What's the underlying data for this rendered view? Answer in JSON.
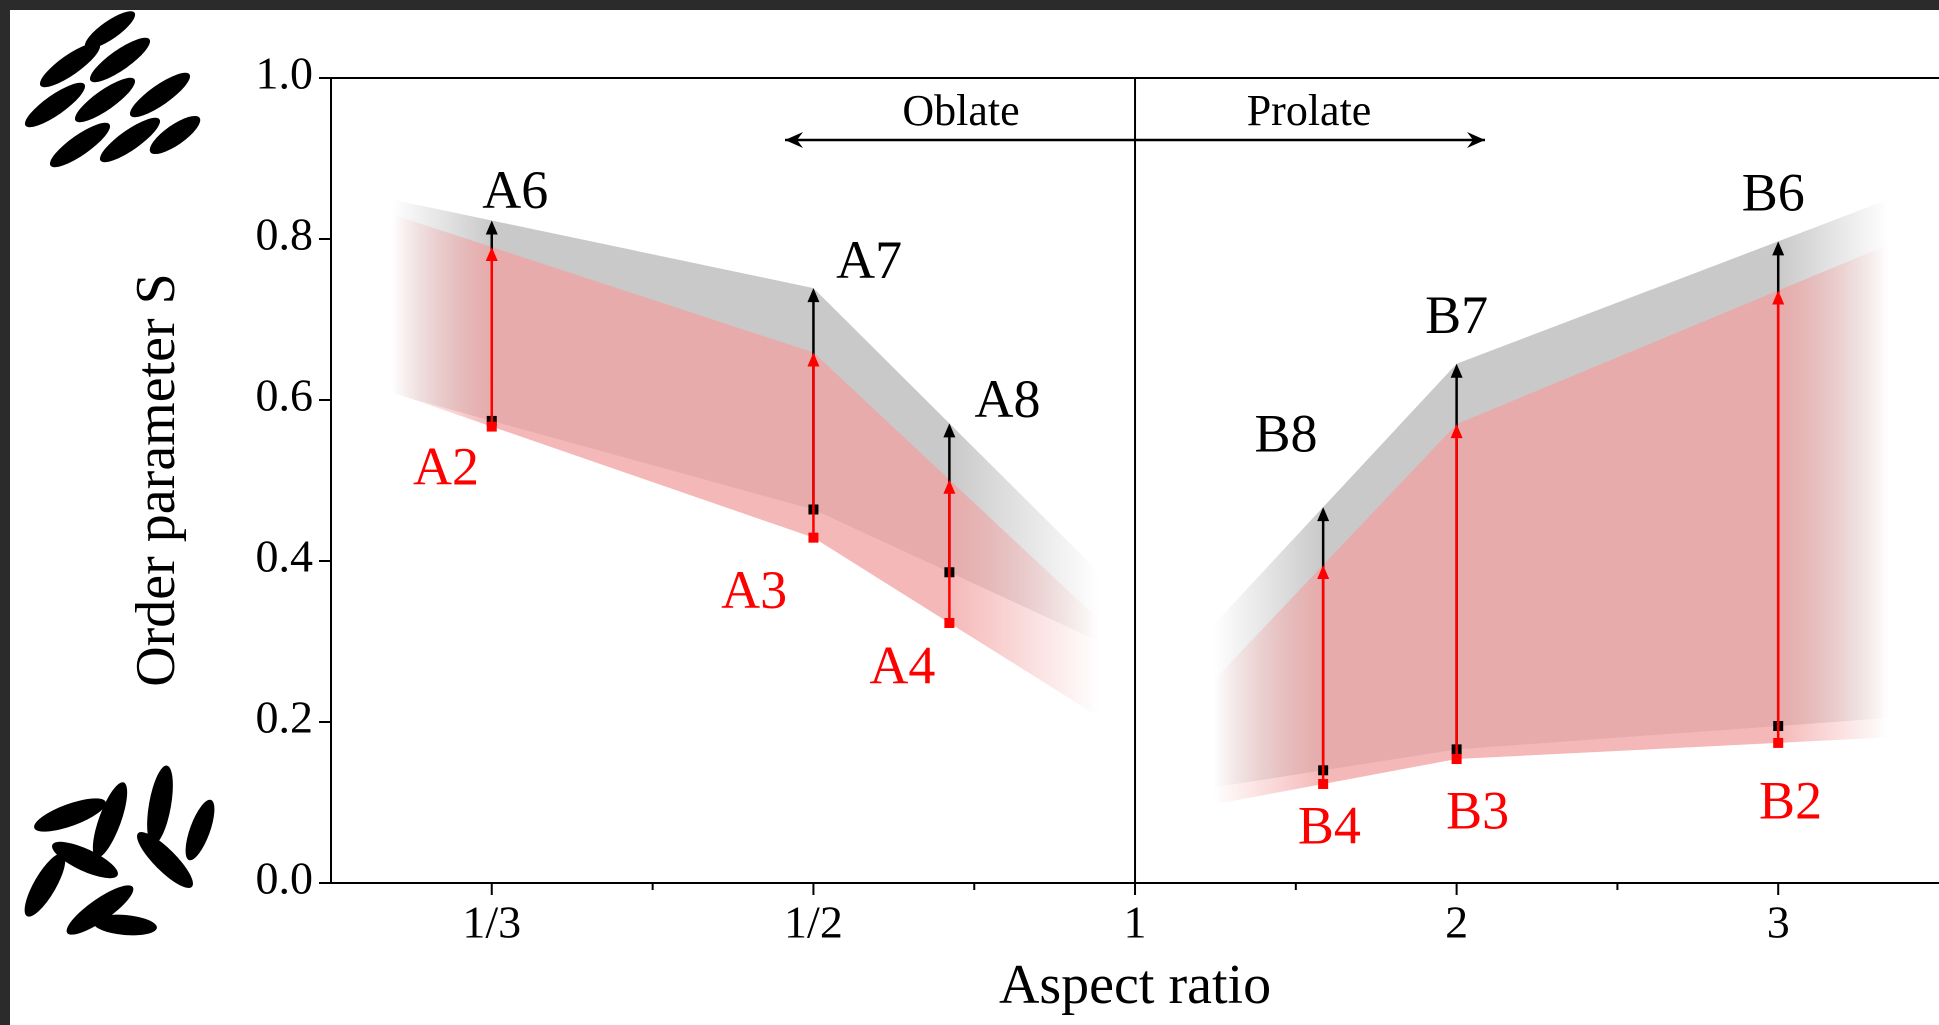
{
  "chart_data": {
    "type": "range",
    "xlabel": "Aspect ratio",
    "ylabel": "Order parameter S",
    "xscale": "reciprocal-symmetric",
    "xlim": [
      0.2857,
      3.5
    ],
    "xticks": [
      {
        "value": 0.3333,
        "label": "1/3"
      },
      {
        "value": 0.5,
        "label": "1/2"
      },
      1,
      2,
      3
    ],
    "xminorticks": [
      0.4,
      0.6667,
      1.5,
      2.5
    ],
    "ylim": [
      0,
      1
    ],
    "yticks": [
      {
        "value": 0,
        "label": "0.0"
      },
      0.2,
      0.4,
      0.6,
      0.8,
      {
        "value": 1,
        "label": "1.0"
      }
    ],
    "vline": 1,
    "annotations": [
      {
        "text": "Oblate",
        "direction": "left"
      },
      {
        "text": "Prolate",
        "direction": "right"
      }
    ],
    "series": [
      {
        "color": "#000000",
        "band_color": "#c9c9c9",
        "x": [
          0.3333,
          0.5,
          0.634,
          1.585,
          2,
          3
        ],
        "low": [
          0.574,
          0.464,
          0.386,
          0.14,
          0.166,
          0.195
        ],
        "high": [
          0.823,
          0.739,
          0.571,
          0.467,
          0.645,
          0.797
        ],
        "labels": [
          "A6",
          "A7",
          "A8",
          "B8",
          "B7",
          "B6"
        ]
      },
      {
        "color": "#ff0000",
        "band_color": "#f2a0a0",
        "x": [
          0.3333,
          0.5,
          0.634,
          1.585,
          2,
          3
        ],
        "low": [
          0.567,
          0.429,
          0.323,
          0.123,
          0.154,
          0.174
        ],
        "high": [
          0.79,
          0.659,
          0.501,
          0.395,
          0.57,
          0.736
        ],
        "labels": [
          "A2",
          "A3",
          "A4",
          "B4",
          "B3",
          "B2"
        ]
      }
    ]
  }
}
